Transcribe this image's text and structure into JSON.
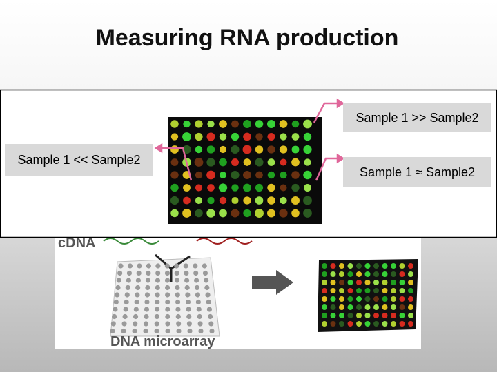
{
  "header": {
    "title": "Measuring RNA production"
  },
  "callouts": [
    {
      "label": "Sample 1 >> Sample2"
    },
    {
      "label": "Sample 1 << Sample2"
    },
    {
      "label": "Sample 1 ≈ Sample2"
    }
  ],
  "figure": {
    "cdna_label": "cDNA",
    "array_label": "DNA microarray"
  }
}
